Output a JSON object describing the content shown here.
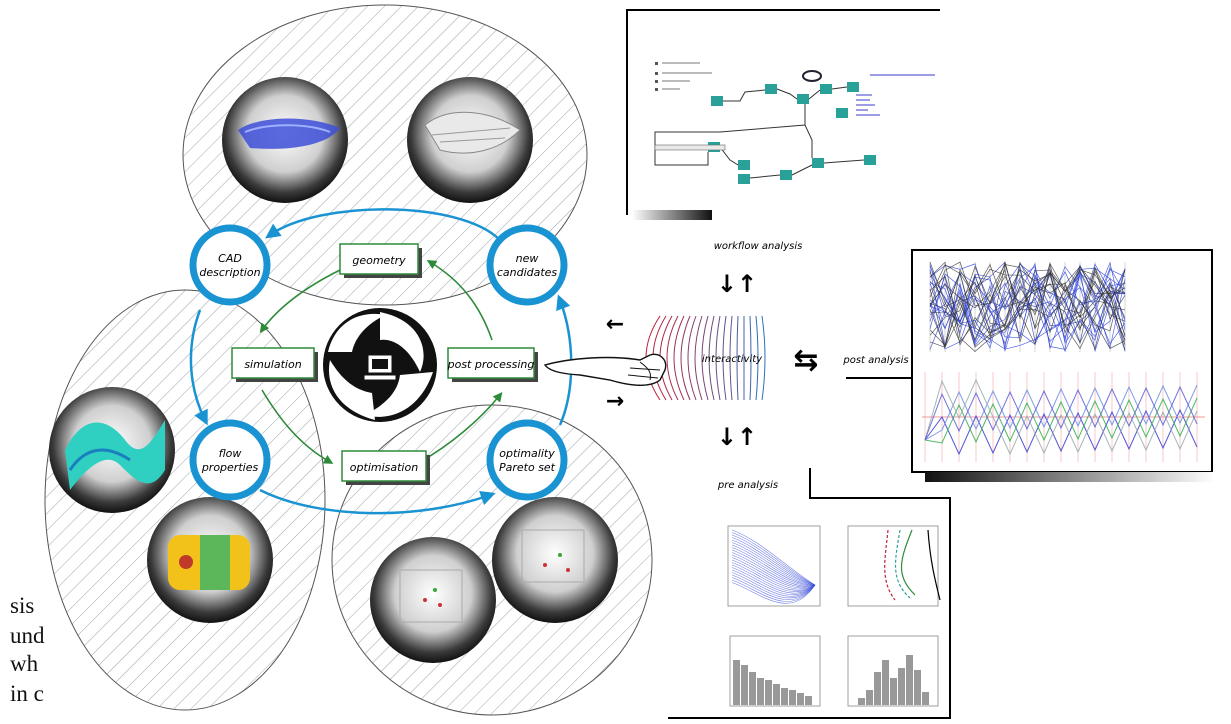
{
  "cycle": {
    "nodes": {
      "cad": [
        "CAD",
        "description"
      ],
      "new_candidates": [
        "new",
        "candidates"
      ],
      "flow": [
        "flow",
        "properties"
      ],
      "optimality": [
        "optimality",
        "Pareto set"
      ]
    },
    "steps": {
      "geometry": "geometry",
      "simulation": "simulation",
      "post_processing": "post processing",
      "optimisation": "optimisation"
    }
  },
  "interactivity": {
    "center_label": "interactivity",
    "workflow_label": "workflow analysis",
    "post_label": "post analysis",
    "pre_label": "pre analysis",
    "vertical_arrows_glyph": "↓↑",
    "horizontal_arrows_glyph": "⇆"
  },
  "body_text_fragments": {
    "lines_left": [
      "sis",
      "und",
      "wh",
      "in c"
    ],
    "lines_right": [
      "",
      "",
      "",
      "",
      ""
    ]
  },
  "colors": {
    "cycle_blue": "#1a93d2",
    "inner_green": "#2e8b3a",
    "hatch": "#9aa3ad",
    "warm_curve": "#c0203a",
    "cool_curve": "#2a6fb5",
    "workflow_node": "#2aa198"
  }
}
